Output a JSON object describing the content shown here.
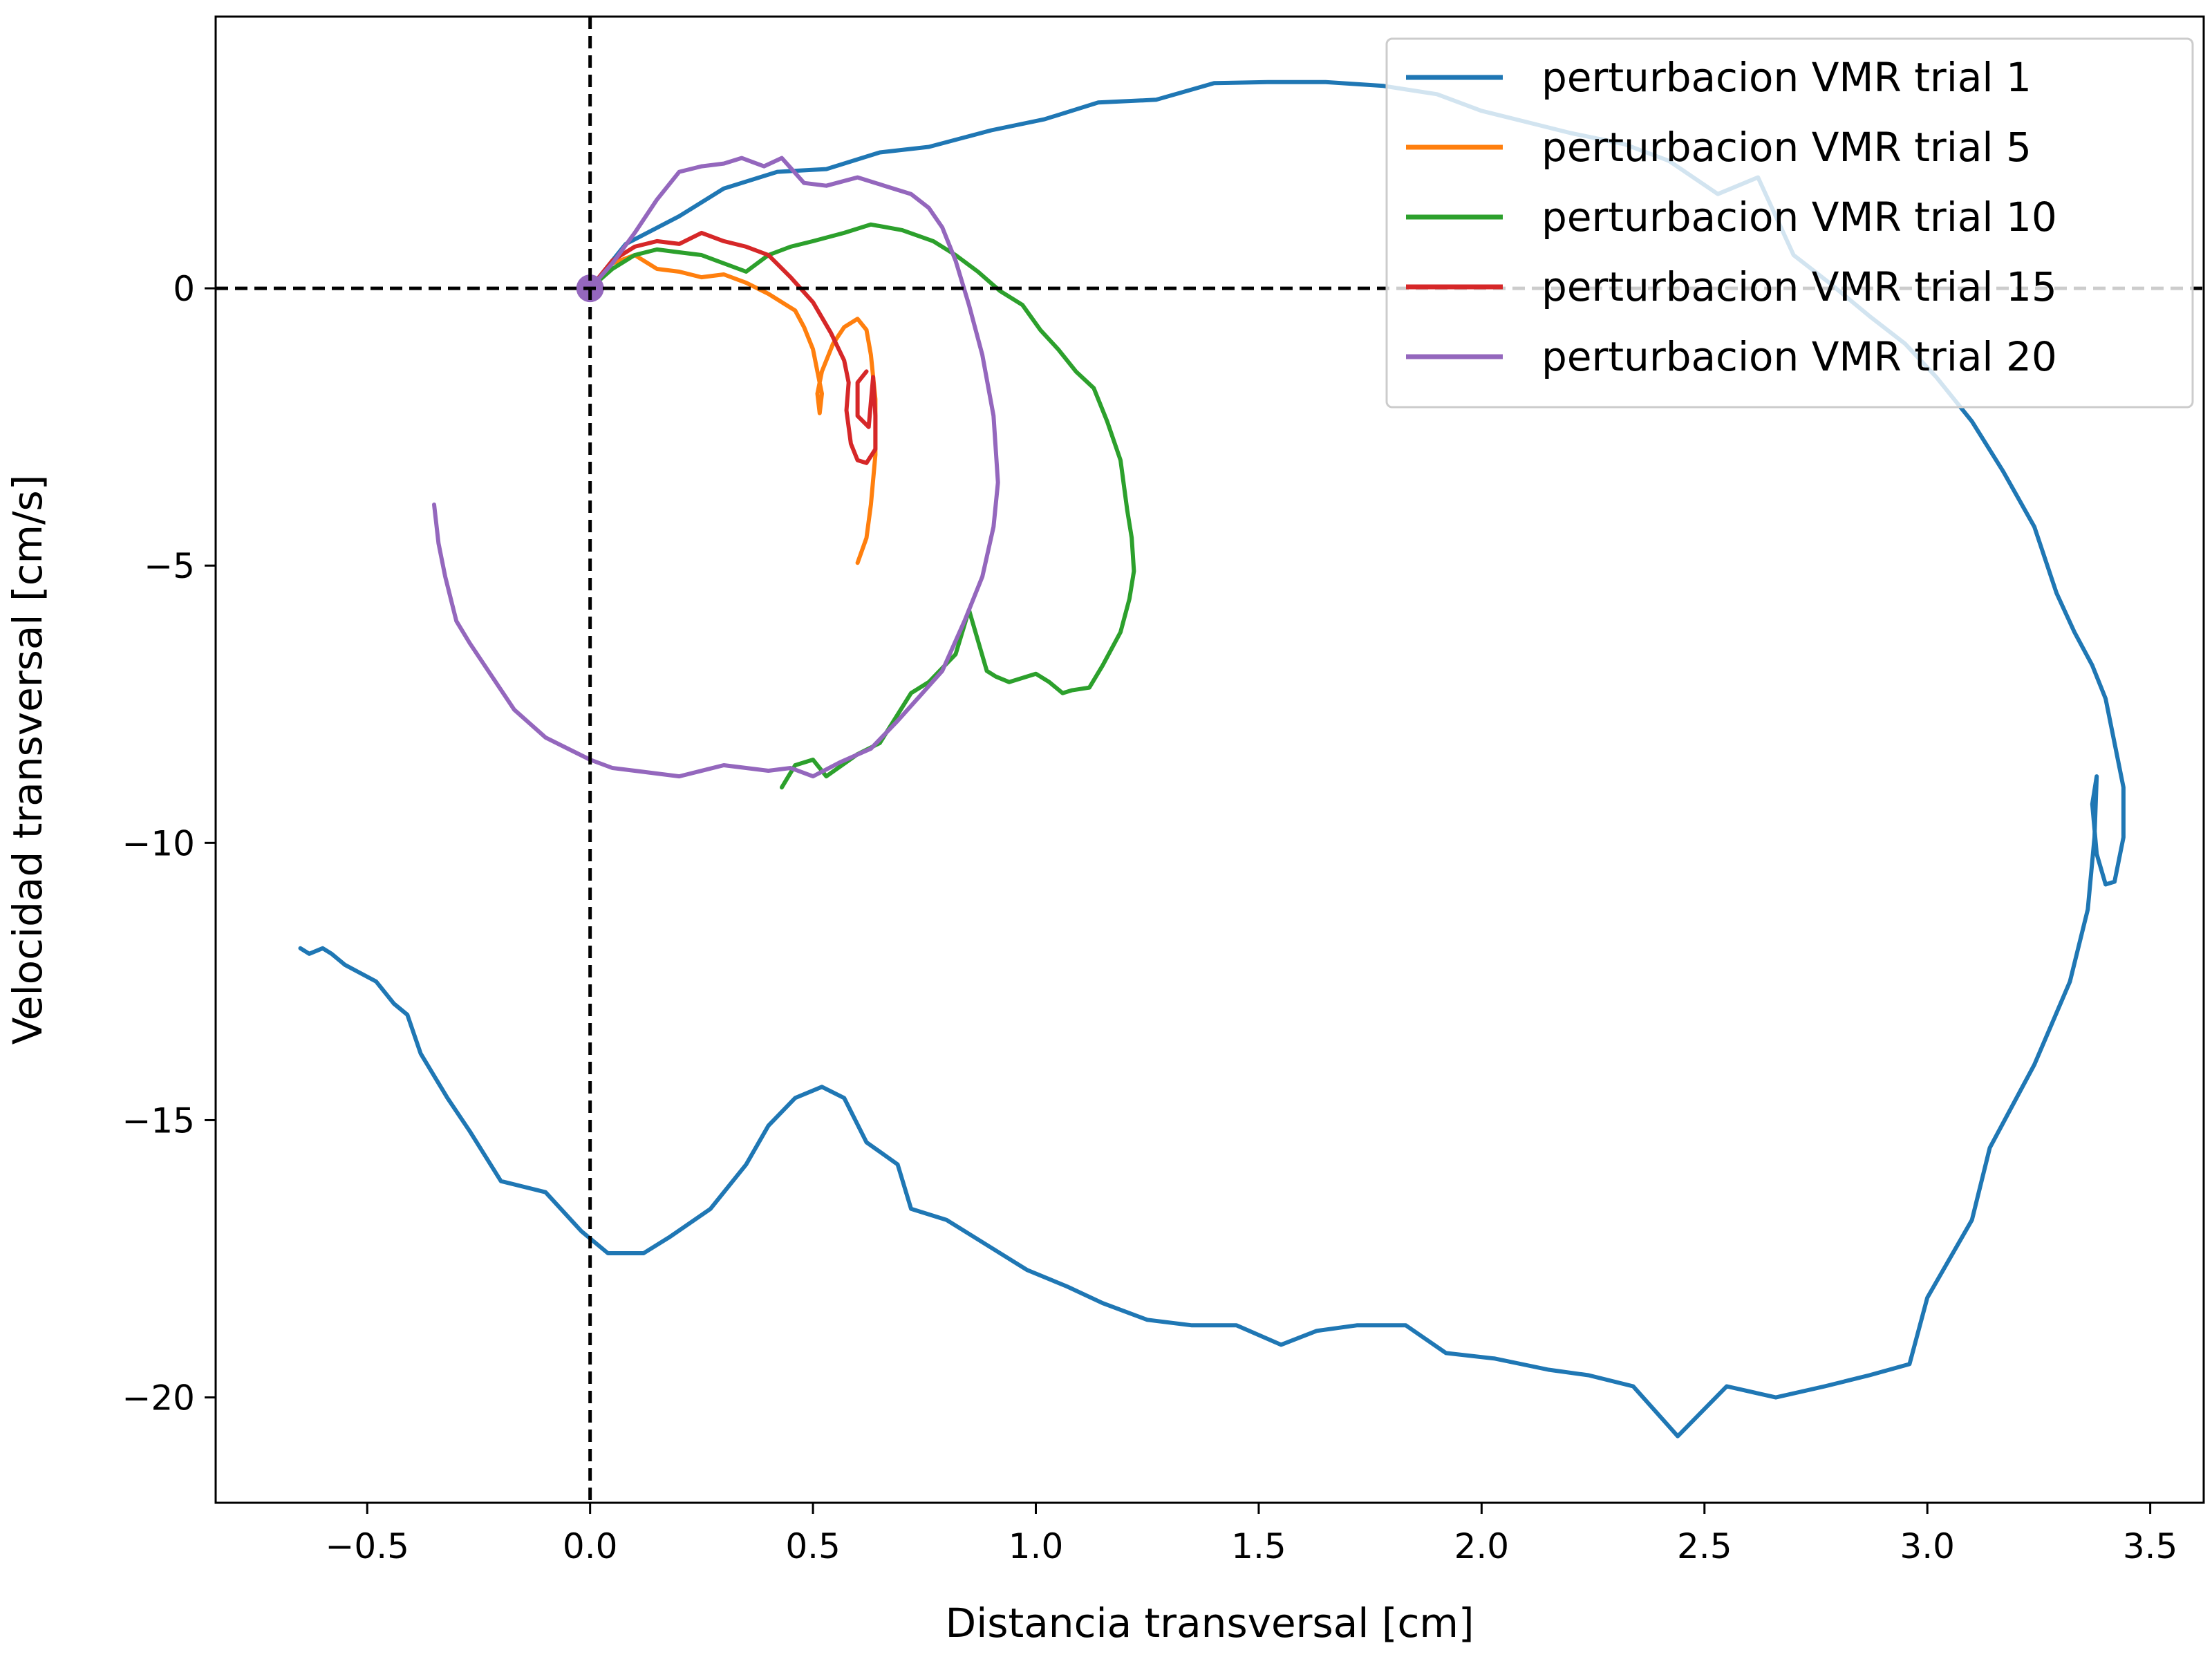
{
  "chart_data": {
    "type": "line",
    "title": "",
    "xlabel": "Distancia transversal [cm]",
    "ylabel": "Velocidad transversal [cm/s]",
    "xlim": [
      -0.84,
      3.62
    ],
    "ylim": [
      -21.9,
      4.9
    ],
    "xticks": [
      -0.5,
      0.0,
      0.5,
      1.0,
      1.5,
      2.0,
      2.5,
      3.0,
      3.5
    ],
    "xtick_labels": [
      "−0.5",
      "0.0",
      "0.5",
      "1.0",
      "1.5",
      "2.0",
      "2.5",
      "3.0",
      "3.5"
    ],
    "yticks": [
      0,
      -5,
      -10,
      -15,
      -20
    ],
    "ytick_labels": [
      "0",
      "−5",
      "−10",
      "−15",
      "−20"
    ],
    "grid": false,
    "legend_position": "top-right",
    "reference_lines": [
      {
        "orientation": "vertical",
        "value": 0,
        "style": "dashed",
        "color": "#000000"
      },
      {
        "orientation": "horizontal",
        "value": 0,
        "style": "dashed",
        "color": "#000000"
      }
    ],
    "start_marker": {
      "x": 0,
      "y": 0,
      "color": "#9467bd"
    },
    "series": [
      {
        "name": "perturbacion VMR trial 1",
        "color": "#1f77b4",
        "points": [
          [
            0,
            0
          ],
          [
            0.08,
            0.8
          ],
          [
            0.2,
            1.3
          ],
          [
            0.3,
            1.8
          ],
          [
            0.42,
            2.1
          ],
          [
            0.53,
            2.15
          ],
          [
            0.65,
            2.45
          ],
          [
            0.76,
            2.55
          ],
          [
            0.9,
            2.85
          ],
          [
            1.02,
            3.05
          ],
          [
            1.14,
            3.35
          ],
          [
            1.27,
            3.4
          ],
          [
            1.4,
            3.7
          ],
          [
            1.52,
            3.72
          ],
          [
            1.65,
            3.72
          ],
          [
            1.78,
            3.65
          ],
          [
            1.9,
            3.5
          ],
          [
            2.0,
            3.2
          ],
          [
            2.1,
            3.0
          ],
          [
            2.2,
            2.8
          ],
          [
            2.32,
            2.6
          ],
          [
            2.42,
            2.3
          ],
          [
            2.53,
            1.7
          ],
          [
            2.62,
            2.0
          ],
          [
            2.7,
            0.6
          ],
          [
            2.78,
            0.1
          ],
          [
            2.87,
            -0.5
          ],
          [
            2.95,
            -1.0
          ],
          [
            3.02,
            -1.6
          ],
          [
            3.1,
            -2.4
          ],
          [
            3.17,
            -3.3
          ],
          [
            3.24,
            -4.3
          ],
          [
            3.29,
            -5.5
          ],
          [
            3.33,
            -6.2
          ],
          [
            3.37,
            -6.8
          ],
          [
            3.4,
            -7.4
          ],
          [
            3.42,
            -8.2
          ],
          [
            3.44,
            -9.0
          ],
          [
            3.44,
            -9.9
          ],
          [
            3.42,
            -10.7
          ],
          [
            3.4,
            -10.75
          ],
          [
            3.38,
            -10.2
          ],
          [
            3.37,
            -9.3
          ],
          [
            3.38,
            -8.8
          ],
          [
            3.375,
            -9.9
          ],
          [
            3.36,
            -11.2
          ],
          [
            3.32,
            -12.5
          ],
          [
            3.24,
            -14.0
          ],
          [
            3.14,
            -15.5
          ],
          [
            3.1,
            -16.8
          ],
          [
            3.0,
            -18.2
          ],
          [
            2.96,
            -19.4
          ],
          [
            2.87,
            -19.6
          ],
          [
            2.77,
            -19.8
          ],
          [
            2.66,
            -20.0
          ],
          [
            2.55,
            -19.8
          ],
          [
            2.44,
            -20.7
          ],
          [
            2.34,
            -19.8
          ],
          [
            2.24,
            -19.6
          ],
          [
            2.15,
            -19.5
          ],
          [
            2.03,
            -19.3
          ],
          [
            1.92,
            -19.2
          ],
          [
            1.83,
            -18.7
          ],
          [
            1.72,
            -18.7
          ],
          [
            1.63,
            -18.8
          ],
          [
            1.55,
            -19.05
          ],
          [
            1.45,
            -18.7
          ],
          [
            1.35,
            -18.7
          ],
          [
            1.25,
            -18.6
          ],
          [
            1.15,
            -18.3
          ],
          [
            1.07,
            -18.0
          ],
          [
            0.98,
            -17.7
          ],
          [
            0.9,
            -17.3
          ],
          [
            0.8,
            -16.8
          ],
          [
            0.72,
            -16.6
          ],
          [
            0.69,
            -15.8
          ],
          [
            0.62,
            -15.4
          ],
          [
            0.57,
            -14.6
          ],
          [
            0.52,
            -14.4
          ],
          [
            0.46,
            -14.6
          ],
          [
            0.4,
            -15.1
          ],
          [
            0.35,
            -15.8
          ],
          [
            0.27,
            -16.6
          ],
          [
            0.18,
            -17.1
          ],
          [
            0.12,
            -17.4
          ],
          [
            0.04,
            -17.4
          ],
          [
            -0.02,
            -17.0
          ],
          [
            -0.1,
            -16.3
          ],
          [
            -0.2,
            -16.1
          ],
          [
            -0.27,
            -15.2
          ],
          [
            -0.32,
            -14.6
          ],
          [
            -0.38,
            -13.8
          ],
          [
            -0.41,
            -13.1
          ],
          [
            -0.44,
            -12.9
          ],
          [
            -0.48,
            -12.5
          ],
          [
            -0.55,
            -12.2
          ],
          [
            -0.58,
            -12.0
          ],
          [
            -0.6,
            -11.9
          ],
          [
            -0.63,
            -12.0
          ],
          [
            -0.65,
            -11.9
          ]
        ]
      },
      {
        "name": "perturbacion VMR trial 5",
        "color": "#ff7f0e",
        "points": [
          [
            0,
            0
          ],
          [
            0.05,
            0.45
          ],
          [
            0.1,
            0.6
          ],
          [
            0.15,
            0.35
          ],
          [
            0.2,
            0.3
          ],
          [
            0.25,
            0.2
          ],
          [
            0.3,
            0.25
          ],
          [
            0.35,
            0.1
          ],
          [
            0.4,
            -0.1
          ],
          [
            0.43,
            -0.25
          ],
          [
            0.46,
            -0.4
          ],
          [
            0.48,
            -0.7
          ],
          [
            0.5,
            -1.1
          ],
          [
            0.51,
            -1.5
          ],
          [
            0.52,
            -1.9
          ],
          [
            0.515,
            -2.25
          ],
          [
            0.51,
            -1.9
          ],
          [
            0.52,
            -1.5
          ],
          [
            0.545,
            -1.0
          ],
          [
            0.57,
            -0.7
          ],
          [
            0.6,
            -0.55
          ],
          [
            0.62,
            -0.75
          ],
          [
            0.63,
            -1.2
          ],
          [
            0.64,
            -2.0
          ],
          [
            0.64,
            -3.0
          ],
          [
            0.63,
            -3.9
          ],
          [
            0.62,
            -4.5
          ],
          [
            0.6,
            -4.95
          ]
        ]
      },
      {
        "name": "perturbacion VMR trial 10",
        "color": "#2ca02c",
        "points": [
          [
            0,
            0
          ],
          [
            0.05,
            0.35
          ],
          [
            0.1,
            0.6
          ],
          [
            0.15,
            0.7
          ],
          [
            0.2,
            0.65
          ],
          [
            0.25,
            0.6
          ],
          [
            0.3,
            0.45
          ],
          [
            0.35,
            0.3
          ],
          [
            0.4,
            0.6
          ],
          [
            0.45,
            0.75
          ],
          [
            0.5,
            0.85
          ],
          [
            0.57,
            1.0
          ],
          [
            0.63,
            1.15
          ],
          [
            0.7,
            1.05
          ],
          [
            0.77,
            0.85
          ],
          [
            0.82,
            0.6
          ],
          [
            0.87,
            0.3
          ],
          [
            0.92,
            -0.05
          ],
          [
            0.97,
            -0.3
          ],
          [
            1.01,
            -0.75
          ],
          [
            1.05,
            -1.1
          ],
          [
            1.09,
            -1.5
          ],
          [
            1.13,
            -1.8
          ],
          [
            1.16,
            -2.4
          ],
          [
            1.19,
            -3.1
          ],
          [
            1.205,
            -4.0
          ],
          [
            1.215,
            -4.5
          ],
          [
            1.22,
            -5.1
          ],
          [
            1.21,
            -5.6
          ],
          [
            1.19,
            -6.2
          ],
          [
            1.15,
            -6.8
          ],
          [
            1.12,
            -7.2
          ],
          [
            1.08,
            -7.25
          ],
          [
            1.06,
            -7.3
          ],
          [
            1.03,
            -7.1
          ],
          [
            1.0,
            -6.95
          ],
          [
            0.98,
            -7.0
          ],
          [
            0.94,
            -7.1
          ],
          [
            0.91,
            -7.0
          ],
          [
            0.89,
            -6.9
          ],
          [
            0.85,
            -5.8
          ],
          [
            0.82,
            -6.6
          ],
          [
            0.76,
            -7.1
          ],
          [
            0.72,
            -7.3
          ],
          [
            0.65,
            -8.2
          ],
          [
            0.6,
            -8.4
          ],
          [
            0.53,
            -8.8
          ],
          [
            0.5,
            -8.5
          ],
          [
            0.46,
            -8.6
          ],
          [
            0.43,
            -9.0
          ]
        ]
      },
      {
        "name": "perturbacion VMR trial 15",
        "color": "#d62728",
        "points": [
          [
            0,
            0
          ],
          [
            0.05,
            0.5
          ],
          [
            0.1,
            0.75
          ],
          [
            0.15,
            0.85
          ],
          [
            0.2,
            0.8
          ],
          [
            0.25,
            1.0
          ],
          [
            0.3,
            0.85
          ],
          [
            0.35,
            0.75
          ],
          [
            0.4,
            0.6
          ],
          [
            0.45,
            0.2
          ],
          [
            0.5,
            -0.25
          ],
          [
            0.54,
            -0.8
          ],
          [
            0.57,
            -1.3
          ],
          [
            0.58,
            -1.7
          ],
          [
            0.575,
            -2.2
          ],
          [
            0.585,
            -2.8
          ],
          [
            0.6,
            -3.1
          ],
          [
            0.62,
            -3.15
          ],
          [
            0.64,
            -2.9
          ],
          [
            0.64,
            -2.3
          ],
          [
            0.635,
            -1.6
          ],
          [
            0.625,
            -2.5
          ],
          [
            0.6,
            -2.3
          ],
          [
            0.6,
            -1.7
          ],
          [
            0.62,
            -1.5
          ]
        ]
      },
      {
        "name": "perturbacion VMR trial 20",
        "color": "#9467bd",
        "points": [
          [
            0,
            0
          ],
          [
            0.05,
            0.45
          ],
          [
            0.1,
            1.0
          ],
          [
            0.15,
            1.6
          ],
          [
            0.2,
            2.1
          ],
          [
            0.25,
            2.2
          ],
          [
            0.3,
            2.25
          ],
          [
            0.34,
            2.35
          ],
          [
            0.39,
            2.2
          ],
          [
            0.43,
            2.35
          ],
          [
            0.48,
            1.9
          ],
          [
            0.53,
            1.85
          ],
          [
            0.6,
            2.0
          ],
          [
            0.66,
            1.85
          ],
          [
            0.72,
            1.7
          ],
          [
            0.76,
            1.45
          ],
          [
            0.79,
            1.1
          ],
          [
            0.82,
            0.5
          ],
          [
            0.85,
            -0.3
          ],
          [
            0.88,
            -1.2
          ],
          [
            0.905,
            -2.3
          ],
          [
            0.915,
            -3.5
          ],
          [
            0.905,
            -4.3
          ],
          [
            0.88,
            -5.2
          ],
          [
            0.84,
            -6.0
          ],
          [
            0.79,
            -6.9
          ],
          [
            0.74,
            -7.35
          ],
          [
            0.69,
            -7.8
          ],
          [
            0.63,
            -8.3
          ],
          [
            0.56,
            -8.55
          ],
          [
            0.5,
            -8.8
          ],
          [
            0.45,
            -8.65
          ],
          [
            0.4,
            -8.7
          ],
          [
            0.3,
            -8.6
          ],
          [
            0.2,
            -8.8
          ],
          [
            0.1,
            -8.7
          ],
          [
            0.05,
            -8.65
          ],
          [
            0.0,
            -8.5
          ],
          [
            -0.05,
            -8.3
          ],
          [
            -0.1,
            -8.1
          ],
          [
            -0.17,
            -7.6
          ],
          [
            -0.22,
            -7.0
          ],
          [
            -0.27,
            -6.4
          ],
          [
            -0.3,
            -6.0
          ],
          [
            -0.325,
            -5.2
          ],
          [
            -0.34,
            -4.6
          ],
          [
            -0.35,
            -3.9
          ]
        ]
      }
    ]
  }
}
